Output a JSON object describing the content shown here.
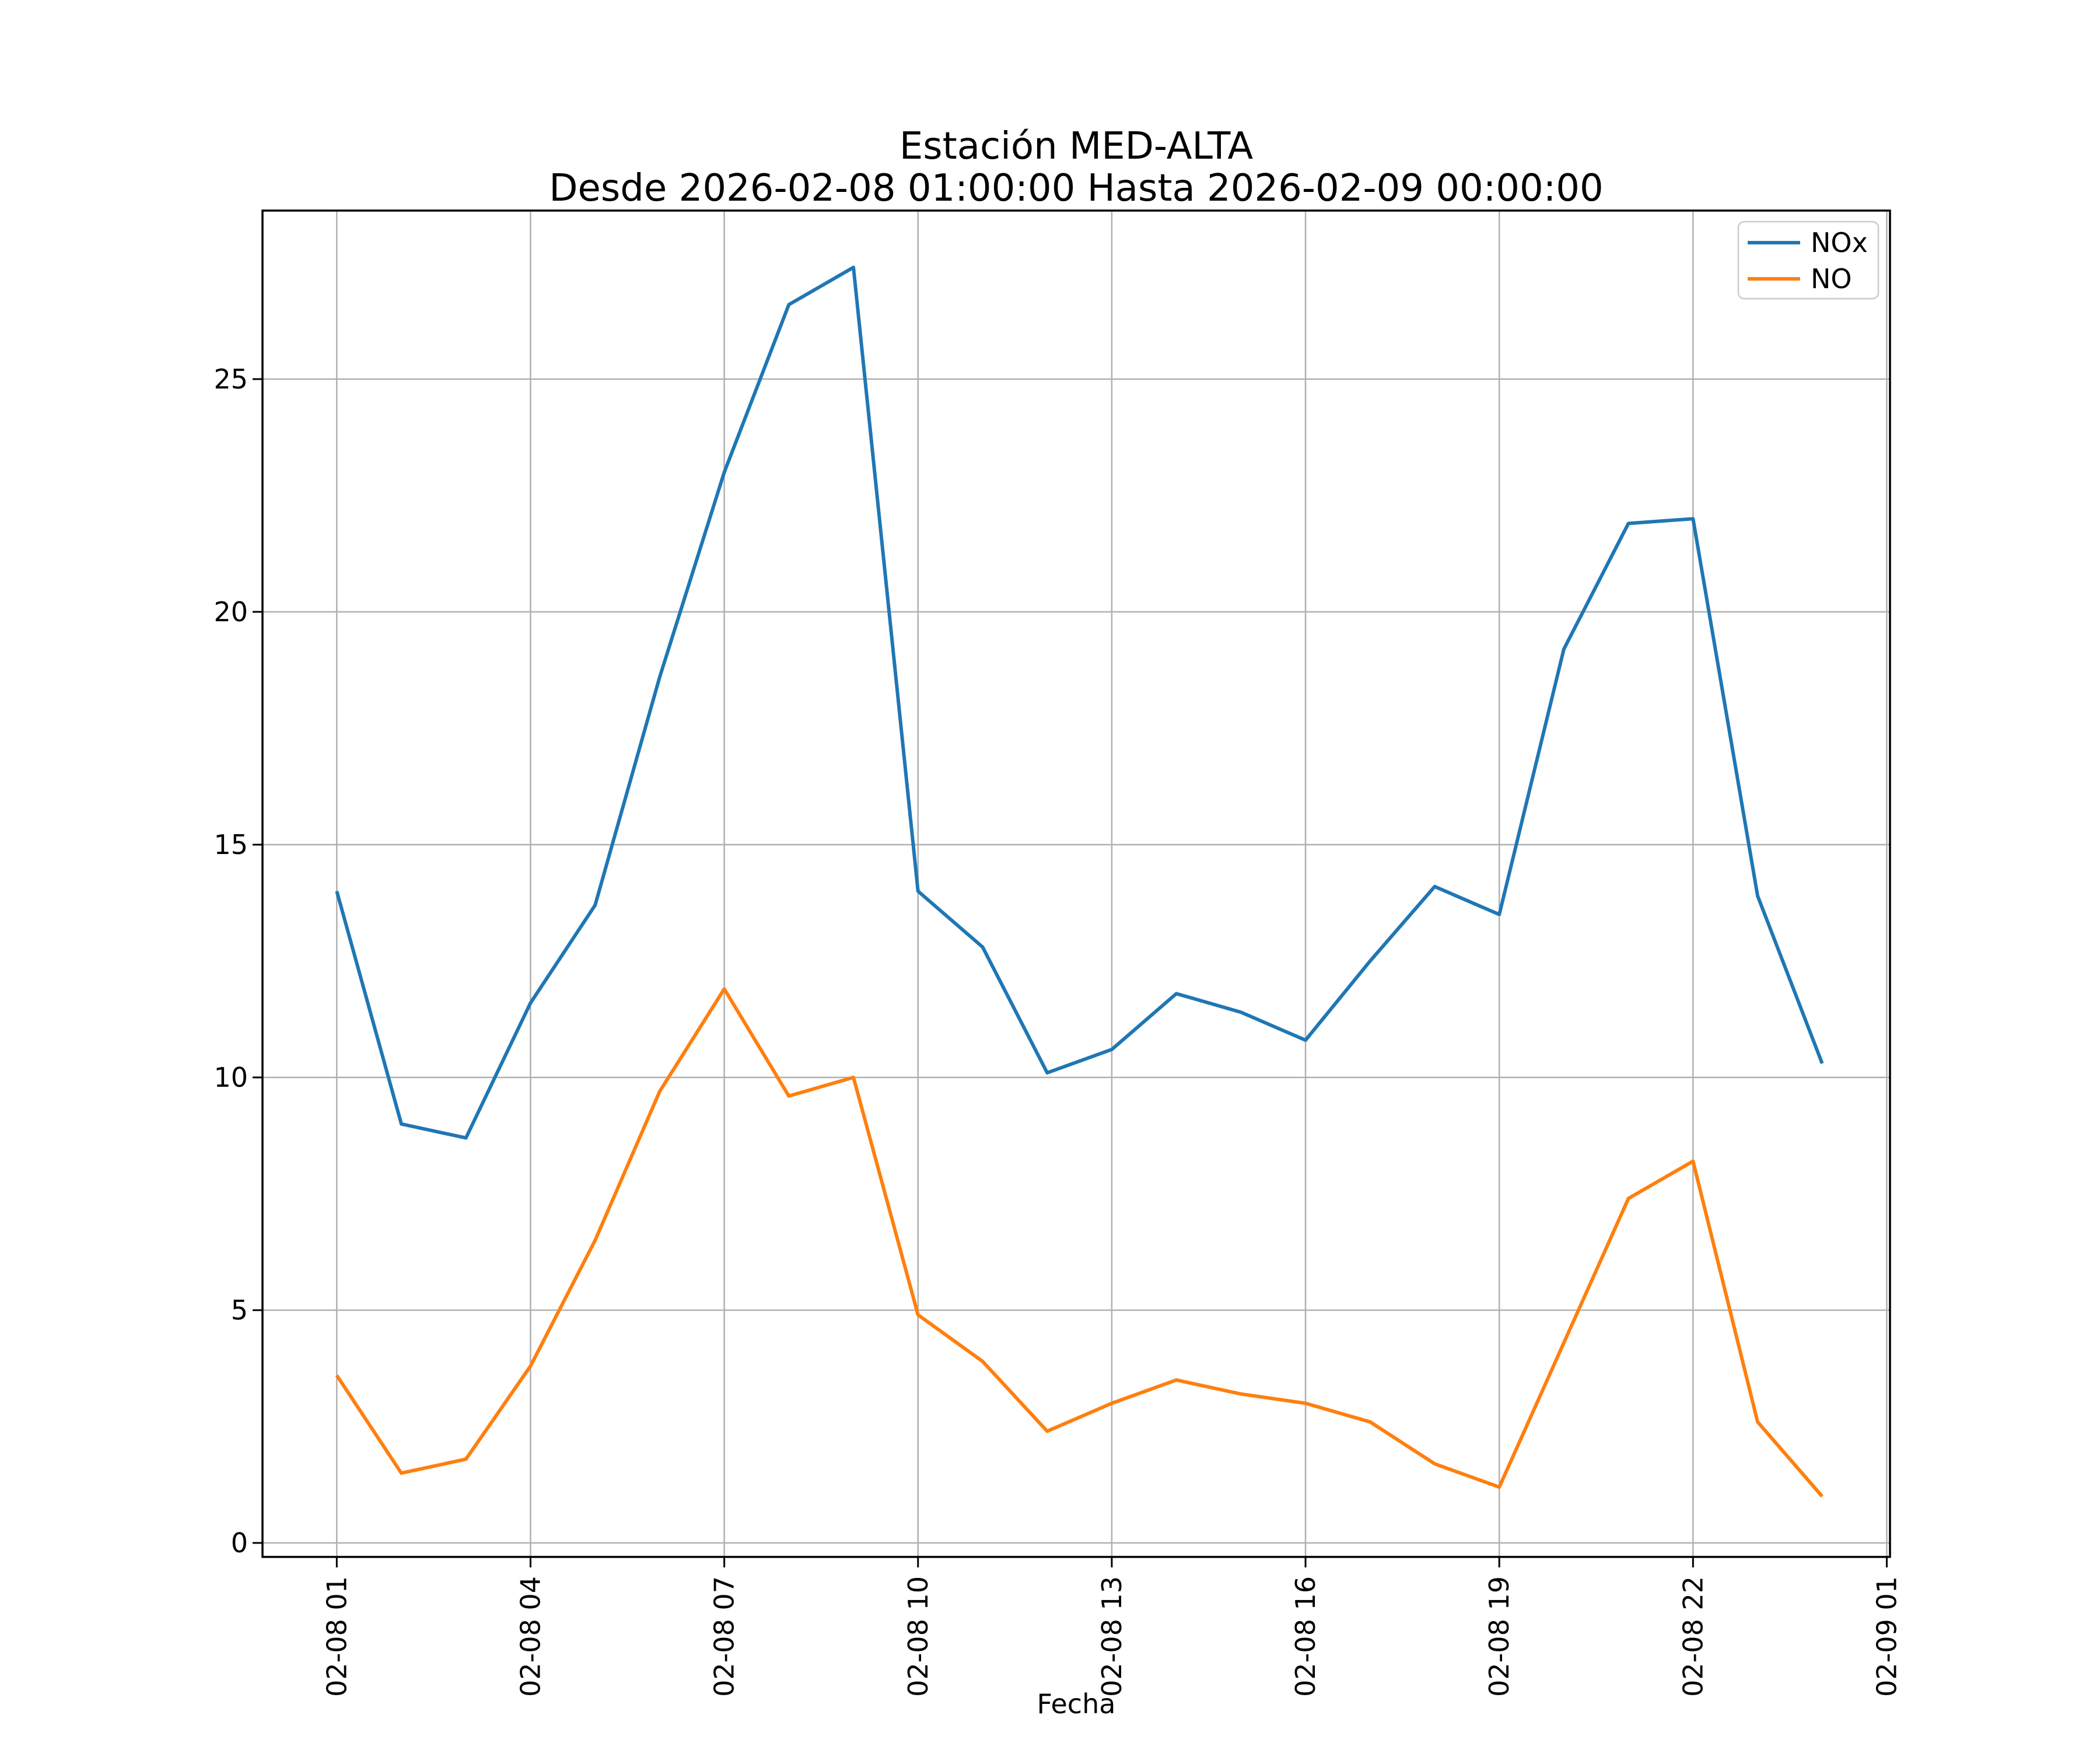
{
  "figure": {
    "background": "#ffffff",
    "title_line1": "Estación MED-ALTA",
    "title_line2": "Desde 2026-02-08 01:00:00 Hasta 2026-02-09 00:00:00"
  },
  "chart_data": {
    "type": "line",
    "title": "Estación MED-ALTA",
    "subtitle": "Desde 2026-02-08 01:00:00 Hasta 2026-02-09 00:00:00",
    "xlabel": "Fecha",
    "ylabel": "",
    "grid": true,
    "legend_position": "upper right",
    "grid_color": "#b0b0b0",
    "axis_color": "#000000",
    "background_color": "#ffffff",
    "x": [
      "2026-02-08 01:00",
      "2026-02-08 02:00",
      "2026-02-08 03:00",
      "2026-02-08 04:00",
      "2026-02-08 05:00",
      "2026-02-08 06:00",
      "2026-02-08 07:00",
      "2026-02-08 08:00",
      "2026-02-08 09:00",
      "2026-02-08 10:00",
      "2026-02-08 11:00",
      "2026-02-08 12:00",
      "2026-02-08 13:00",
      "2026-02-08 14:00",
      "2026-02-08 15:00",
      "2026-02-08 16:00",
      "2026-02-08 17:00",
      "2026-02-08 18:00",
      "2026-02-08 19:00",
      "2026-02-08 20:00",
      "2026-02-08 21:00",
      "2026-02-08 22:00",
      "2026-02-08 23:00",
      "2026-02-09 00:00"
    ],
    "x_hours": [
      1,
      2,
      3,
      4,
      5,
      6,
      7,
      8,
      9,
      10,
      11,
      12,
      13,
      14,
      15,
      16,
      17,
      18,
      19,
      20,
      21,
      22,
      23,
      24
    ],
    "series": [
      {
        "name": "NOx",
        "color": "#1f77b4",
        "values": [
          14.0,
          9.0,
          8.7,
          11.6,
          13.7,
          18.6,
          23.0,
          26.6,
          27.4,
          14.0,
          12.8,
          10.1,
          10.6,
          11.8,
          11.4,
          10.8,
          12.5,
          14.1,
          13.5,
          19.2,
          21.9,
          22.0,
          13.9,
          10.3
        ]
      },
      {
        "name": "NO",
        "color": "#ff7f0e",
        "values": [
          3.6,
          1.5,
          1.8,
          3.8,
          6.5,
          9.7,
          11.9,
          9.6,
          10.0,
          4.9,
          3.9,
          2.4,
          3.0,
          3.5,
          3.2,
          3.0,
          2.6,
          1.7,
          1.2,
          4.3,
          7.4,
          8.2,
          2.6,
          1.0
        ]
      }
    ],
    "x_tick_hours": [
      1,
      4,
      7,
      10,
      13,
      16,
      19,
      22,
      25
    ],
    "x_tick_labels": [
      "02-08 01",
      "02-08 04",
      "02-08 07",
      "02-08 10",
      "02-08 13",
      "02-08 16",
      "02-08 19",
      "02-08 22",
      "02-09 01"
    ],
    "y_ticks": [
      0,
      5,
      10,
      15,
      20,
      25
    ],
    "y_tick_labels": [
      "0",
      "5",
      "10",
      "15",
      "20",
      "25"
    ],
    "xlim_hours": [
      -0.15,
      25.05
    ],
    "ylim": [
      -0.3,
      28.62
    ]
  }
}
